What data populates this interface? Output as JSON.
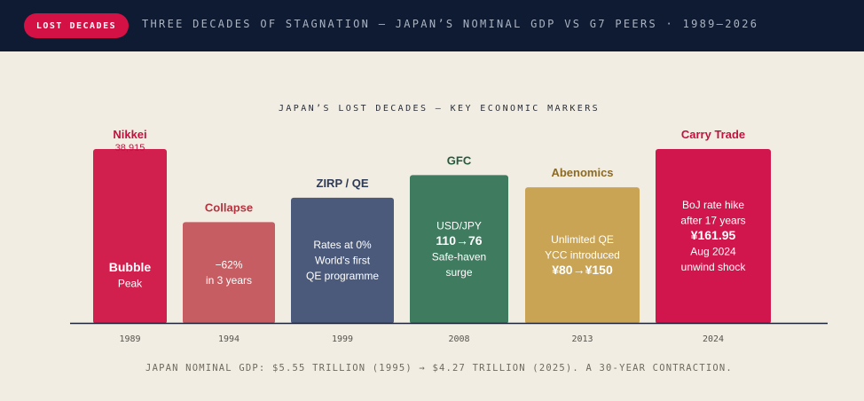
{
  "header": {
    "badge": "LOST DECADES",
    "title": "THREE DECADES OF STAGNATION — JAPAN’S NOMINAL GDP VS G7 PEERS · 1989–2026"
  },
  "chart_data": {
    "type": "bar",
    "title": "JAPAN’S LOST DECADES — KEY ECONOMIC MARKERS",
    "categories": [
      "1989",
      "1994",
      "1999",
      "2008",
      "2013",
      "2024"
    ],
    "values": [
      100,
      58,
      72,
      85,
      78,
      100
    ],
    "ylim": [
      0,
      100
    ],
    "grid": false,
    "bars": [
      {
        "year": "1989",
        "top_label": "Nikkei",
        "top_sub": "38,915",
        "lines": [
          "Bubble",
          "Peak"
        ],
        "bold": [
          0
        ],
        "color": "#d1204e",
        "label_color": "#c1123f"
      },
      {
        "year": "1994",
        "top_label": "Collapse",
        "top_sub": "",
        "lines": [
          "−62%",
          "in 3 years"
        ],
        "bold": [],
        "color": "#c65d62",
        "label_color": "#b5333e"
      },
      {
        "year": "1999",
        "top_label": "ZIRP / QE",
        "top_sub": "",
        "lines": [
          "Rates at 0%",
          "World's first",
          "QE programme"
        ],
        "bold": [],
        "color": "#4b5a7a",
        "label_color": "#2e3a56"
      },
      {
        "year": "2008",
        "top_label": "GFC",
        "top_sub": "",
        "lines": [
          "USD/JPY",
          "110→76",
          "Safe-haven",
          "surge"
        ],
        "bold": [
          1
        ],
        "color": "#3e7b5f",
        "label_color": "#245a40"
      },
      {
        "year": "2013",
        "top_label": "Abenomics",
        "top_sub": "",
        "lines": [
          "Unlimited QE",
          "YCC introduced",
          "¥80→¥150"
        ],
        "bold": [
          2
        ],
        "color": "#c9a455",
        "label_color": "#8c6a22"
      },
      {
        "year": "2024",
        "top_label": "Carry Trade",
        "top_sub": "",
        "lines": [
          "BoJ rate hike",
          "after 17 years",
          "¥161.95",
          "Aug 2024",
          "unwind shock"
        ],
        "bold": [
          2
        ],
        "color": "#d0164c",
        "label_color": "#c1123f"
      }
    ]
  },
  "caption": "JAPAN NOMINAL GDP: $5.55 TRILLION (1995) → $4.27 TRILLION (2025). A 30-YEAR CONTRACTION."
}
